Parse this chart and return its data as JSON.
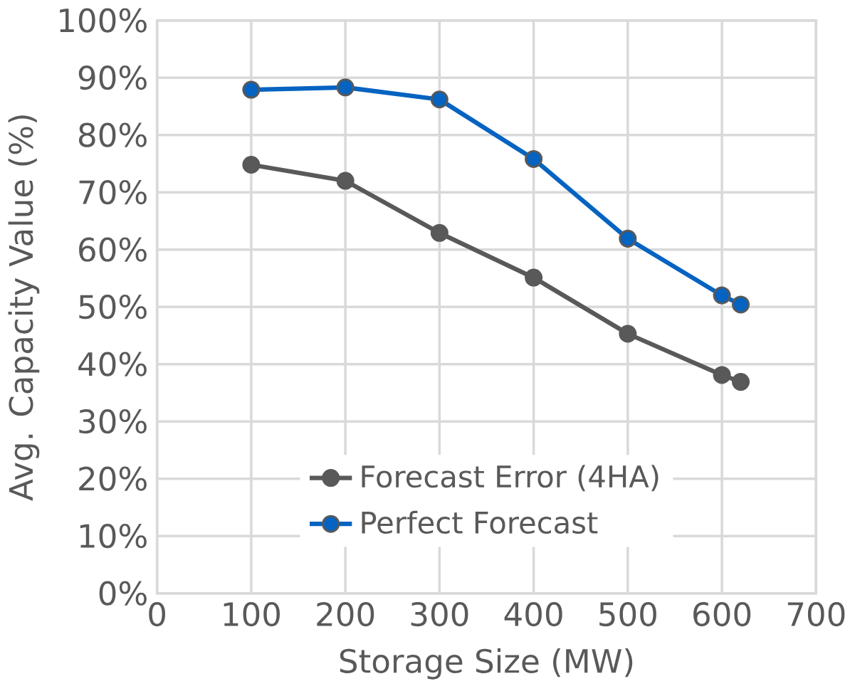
{
  "chart_data": {
    "type": "line",
    "xlabel": "Storage Size (MW)",
    "ylabel": "Avg. Capacity Value (%)",
    "x": [
      100,
      200,
      300,
      400,
      500,
      600,
      620
    ],
    "series": [
      {
        "name": "Forecast Error (4HA)",
        "color": "#595959",
        "values": [
          74.8,
          72.0,
          62.9,
          55.1,
          45.3,
          38.1,
          36.9
        ]
      },
      {
        "name": "Perfect Forecast",
        "color": "#0563c1",
        "values": [
          87.9,
          88.3,
          86.2,
          75.8,
          61.9,
          52.0,
          50.4
        ]
      }
    ],
    "xlim": [
      0,
      700
    ],
    "xticks": [
      0,
      100,
      200,
      300,
      400,
      500,
      600,
      700
    ],
    "ylim": [
      0,
      100
    ],
    "yticks": [
      {
        "value": 0,
        "label": "0%"
      },
      {
        "value": 10,
        "label": "10%"
      },
      {
        "value": 20,
        "label": "20%"
      },
      {
        "value": 30,
        "label": "30%"
      },
      {
        "value": 40,
        "label": "40%"
      },
      {
        "value": 50,
        "label": "50%"
      },
      {
        "value": 60,
        "label": "60%"
      },
      {
        "value": 70,
        "label": "70%"
      },
      {
        "value": 80,
        "label": "80%"
      },
      {
        "value": 90,
        "label": "90%"
      },
      {
        "value": 100,
        "label": "100%"
      }
    ],
    "grid": true,
    "legend": "bottom",
    "marker": "circle",
    "line_style": "solid"
  }
}
